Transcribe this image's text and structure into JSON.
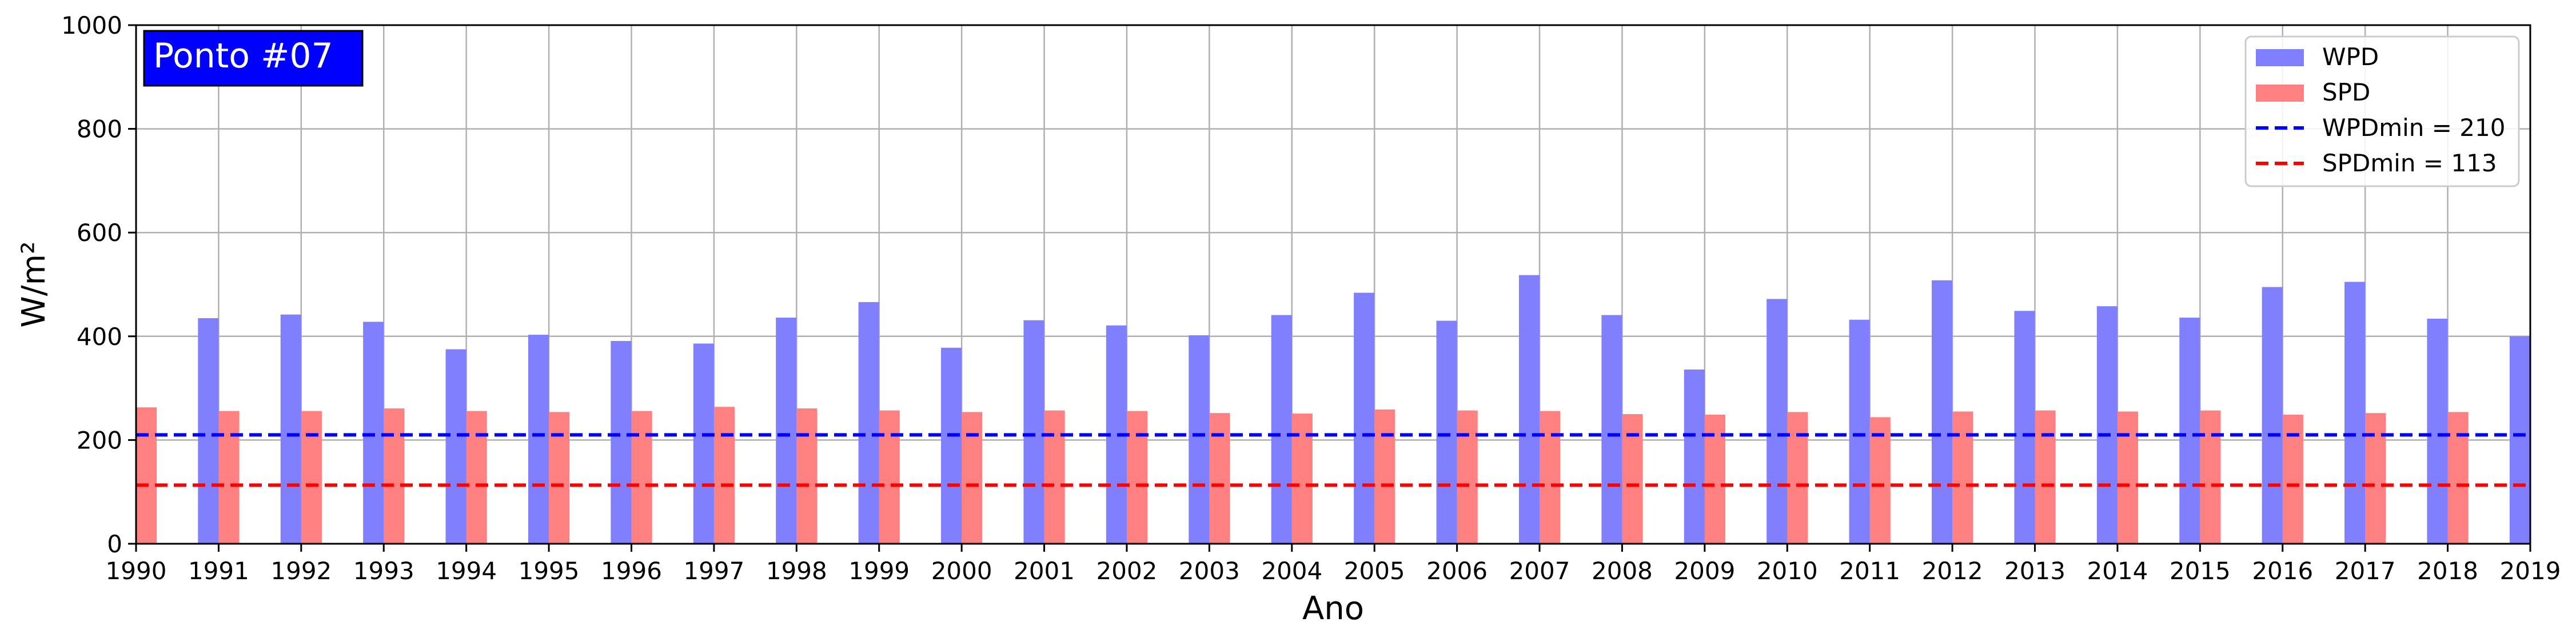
{
  "chart_data": {
    "type": "bar",
    "title": "Ponto #07",
    "xlabel": "Ano",
    "ylabel": "W/m²",
    "xlim": [
      1990,
      2019
    ],
    "ylim": [
      0,
      1000
    ],
    "yticks": [
      0,
      200,
      400,
      600,
      800,
      1000
    ],
    "xticks": [
      1990,
      1991,
      1992,
      1993,
      1994,
      1995,
      1996,
      1997,
      1998,
      1999,
      2000,
      2001,
      2002,
      2003,
      2004,
      2005,
      2006,
      2007,
      2008,
      2009,
      2010,
      2011,
      2012,
      2013,
      2014,
      2015,
      2016,
      2017,
      2018,
      2019
    ],
    "grid": true,
    "legend_position": "top-right",
    "x": [
      1990,
      1991,
      1992,
      1993,
      1994,
      1995,
      1996,
      1997,
      1998,
      1999,
      2000,
      2001,
      2002,
      2003,
      2004,
      2005,
      2006,
      2007,
      2008,
      2009,
      2010,
      2011,
      2012,
      2013,
      2014,
      2015,
      2016,
      2017,
      2018,
      2019
    ],
    "series": [
      {
        "name": "WPD",
        "color": "#8080ff",
        "values": [
          null,
          435,
          442,
          428,
          375,
          403,
          391,
          386,
          436,
          466,
          378,
          431,
          421,
          402,
          441,
          484,
          430,
          518,
          441,
          336,
          472,
          432,
          508,
          449,
          458,
          436,
          495,
          505,
          434,
          400
        ]
      },
      {
        "name": "SPD",
        "color": "#ff8080",
        "values": [
          263,
          256,
          256,
          261,
          256,
          254,
          256,
          264,
          261,
          257,
          254,
          257,
          256,
          252,
          251,
          259,
          257,
          256,
          250,
          249,
          254,
          244,
          255,
          257,
          255,
          257,
          249,
          252,
          254,
          null
        ]
      }
    ],
    "reference_lines": [
      {
        "name": "WPDmin = 210",
        "value": 210,
        "color": "#0000ff",
        "style": "dashed"
      },
      {
        "name": "SPDmin = 113",
        "value": 113,
        "color": "#ff0000",
        "style": "dashed"
      }
    ]
  }
}
